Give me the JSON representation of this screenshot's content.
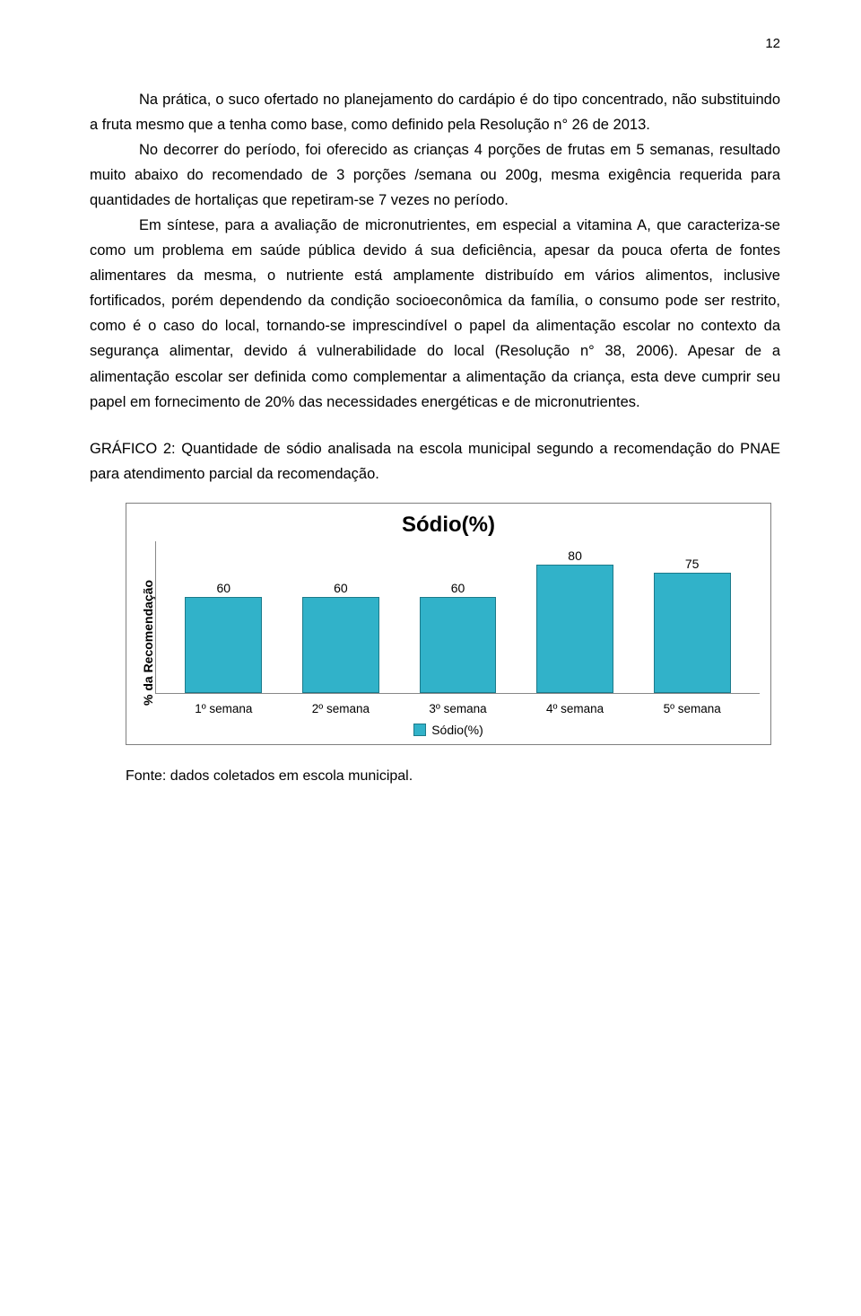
{
  "page_number": "12",
  "paragraphs": {
    "p1": "Na prática, o suco ofertado no planejamento do cardápio é do tipo concentrado, não substituindo a fruta mesmo que a tenha como base, como definido pela Resolução n° 26 de 2013.",
    "p2": "No decorrer do período, foi oferecido as crianças 4 porções de frutas em 5 semanas, resultado muito abaixo do recomendado de 3 porções /semana ou 200g, mesma exigência requerida para quantidades de hortaliças que repetiram-se 7 vezes no período.",
    "p3": "Em síntese, para a avaliação de micronutrientes, em especial a vitamina A, que caracteriza-se como um problema em saúde pública devido á sua deficiência, apesar da pouca oferta de fontes alimentares da mesma, o nutriente está amplamente distribuído em vários alimentos, inclusive fortificados, porém dependendo da condição socioeconômica da família, o consumo pode ser restrito, como é o caso do local, tornando-se imprescindível o papel da alimentação escolar no contexto da segurança alimentar, devido á vulnerabilidade do local (Resolução n° 38, 2006). Apesar de a alimentação escolar ser definida como complementar a alimentação da criança, esta deve cumprir seu papel em fornecimento de 20% das necessidades energéticas e de micronutrientes."
  },
  "chart_caption": "GRÁFICO 2: Quantidade de sódio analisada na escola municipal segundo a recomendação do PNAE para atendimento parcial da recomendação.",
  "chart": {
    "type": "bar",
    "title": "Sódio(%)",
    "y_label": "% da Recomendação",
    "categories": [
      "1º semana",
      "2º semana",
      "3º semana",
      "4º semana",
      "5º semana"
    ],
    "values": [
      60,
      60,
      60,
      80,
      75
    ],
    "value_labels": [
      "60",
      "60",
      "60",
      "80",
      "75"
    ],
    "bar_color": "#31b2c9",
    "bar_border_color": "#1c7a8a",
    "legend_label": "Sódio(%)",
    "ymax_display": 90,
    "border_color": "#7f7f7f",
    "title_fontsize": 24,
    "axis_fontsize": 13.5,
    "y_label_fontsize": 14
  },
  "source_note": "Fonte: dados coletados em escola municipal."
}
